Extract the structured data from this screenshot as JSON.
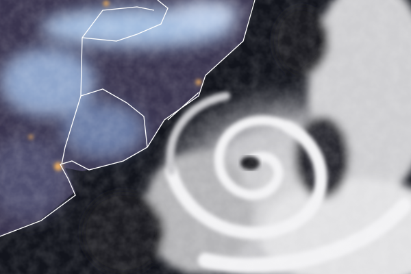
{
  "image": {
    "subject": "satellite-cyclone",
    "colors": {
      "land_night": "#3a3550",
      "ocean": "#10121a",
      "cloud": "#e8e8ea",
      "snow_cloud_blue": "#9fb8dc",
      "border": "#ffffff",
      "city_lights": "#f0b060"
    }
  }
}
